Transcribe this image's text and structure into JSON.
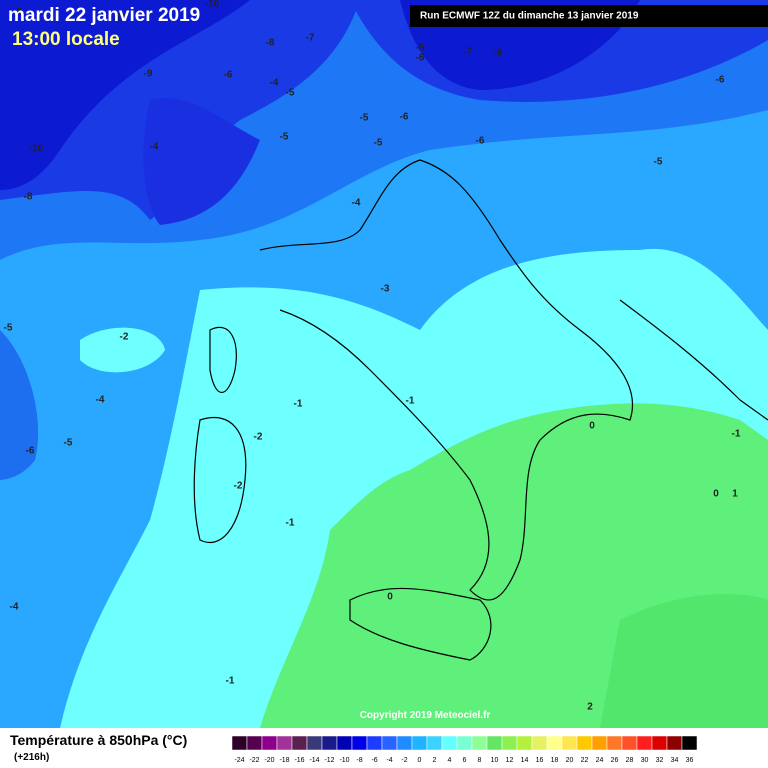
{
  "header": {
    "date": "mardi 22 janvier 2019",
    "time": "13:00 locale",
    "run": "Run ECMWF 12Z du dimanche 13 janvier 2019"
  },
  "copyright": "Copyright 2019 Meteociel.fr",
  "contour_labels": [
    "-9",
    "-10",
    "-10",
    "-9",
    "-8",
    "-7",
    "-5",
    "-6",
    "-7",
    "-9",
    "-6",
    "-6",
    "-5",
    "-4",
    "-5",
    "-6",
    "-5",
    "-5",
    "-6",
    "-5",
    "-4",
    "-4",
    "-3",
    "-5",
    "-2",
    "-1",
    "-1",
    "-4",
    "-5",
    "-6",
    "-2",
    "-2",
    "-1",
    "-4",
    "0",
    "-1",
    "0",
    "1",
    "-1",
    "0",
    "2",
    "-10",
    "-8"
  ],
  "legend": {
    "title": "Température à 850hPa (°C)",
    "lead": "(+216h)",
    "ticks": [
      -24,
      -22,
      -20,
      -18,
      -16,
      -14,
      -12,
      -10,
      -8,
      -6,
      -4,
      -2,
      0,
      2,
      4,
      6,
      8,
      10,
      12,
      14,
      16,
      18,
      20,
      22,
      24,
      26,
      28,
      30,
      32,
      34,
      36
    ],
    "colors": [
      "#2d0028",
      "#550050",
      "#8c008c",
      "#a0329a",
      "#5a2050",
      "#3a3a7a",
      "#1a1a8c",
      "#0000b4",
      "#0000e6",
      "#1e3cff",
      "#2864ff",
      "#1e8cff",
      "#1eb4ff",
      "#3cd2ff",
      "#64ffff",
      "#78ffd2",
      "#8cff96",
      "#64e664",
      "#8cf050",
      "#b4f03c",
      "#e6f064",
      "#ffff8c",
      "#ffe650",
      "#ffc800",
      "#ffa000",
      "#ff7828",
      "#ff5028",
      "#ff1e1e",
      "#dc0000",
      "#8c0000",
      "#000000"
    ]
  }
}
